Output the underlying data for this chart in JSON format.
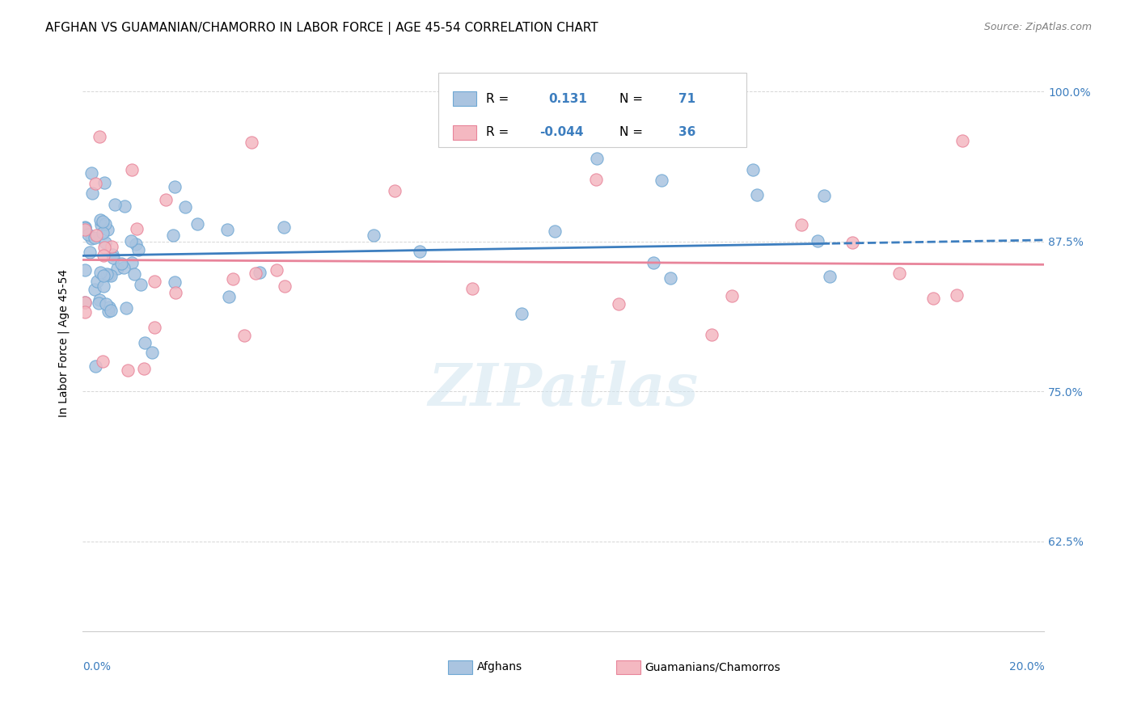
{
  "title": "AFGHAN VS GUAMANIAN/CHAMORRO IN LABOR FORCE | AGE 45-54 CORRELATION CHART",
  "source": "Source: ZipAtlas.com",
  "ylabel": "In Labor Force | Age 45-54",
  "ytick_labels": [
    "62.5%",
    "75.0%",
    "87.5%",
    "100.0%"
  ],
  "ytick_values": [
    0.625,
    0.75,
    0.875,
    1.0
  ],
  "xlim": [
    0.0,
    0.2
  ],
  "ylim": [
    0.55,
    1.03
  ],
  "watermark": "ZIPatlas",
  "afghan_color": "#aac4e0",
  "afghan_edge": "#6fa8d4",
  "guam_color": "#f4b8c1",
  "guam_edge": "#e8849a",
  "line_color_afghan": "#3d7ebf",
  "line_color_guam": "#e8849a",
  "afghan_r": 0.131,
  "afghan_n": 71,
  "guam_r": -0.044,
  "guam_n": 36,
  "background_color": "#ffffff",
  "grid_color": "#cccccc",
  "title_fontsize": 11,
  "axis_label_fontsize": 10,
  "tick_fontsize": 10,
  "source_fontsize": 9,
  "blue_text": "#3d7ebf"
}
